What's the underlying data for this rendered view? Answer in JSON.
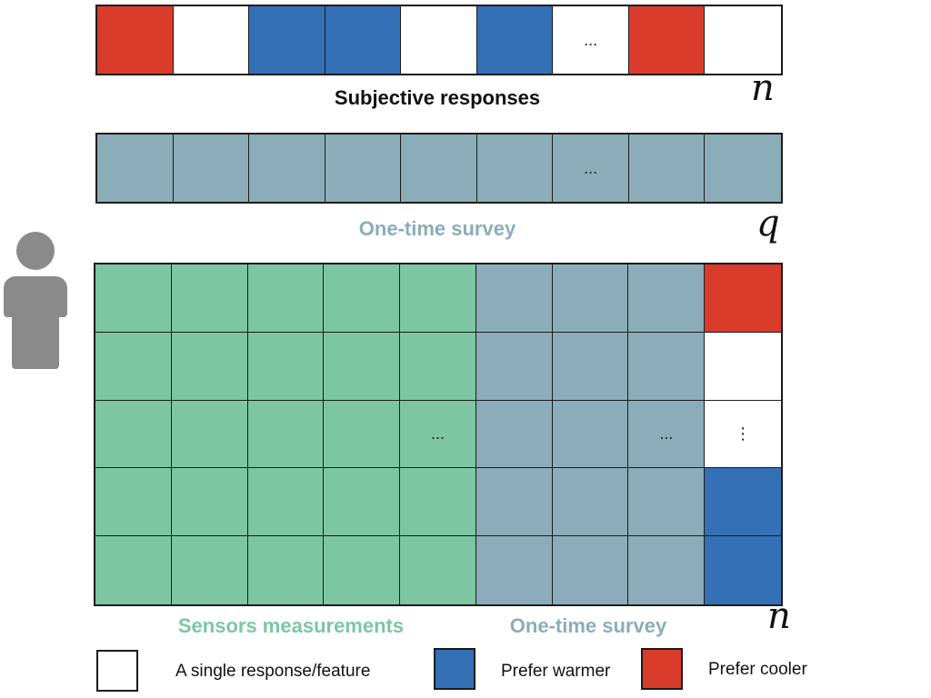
{
  "colors": {
    "white": "#ffffff",
    "warmer": "#3370b6",
    "cooler": "#d93c2b",
    "survey": "#8badb9",
    "sensor": "#7cc6a4",
    "person": "#8a8a8a"
  },
  "responses_strip": {
    "cells": [
      {
        "color": "cooler",
        "text": ""
      },
      {
        "color": "white",
        "text": ""
      },
      {
        "color": "warmer",
        "text": ""
      },
      {
        "color": "warmer",
        "text": ""
      },
      {
        "color": "white",
        "text": ""
      },
      {
        "color": "warmer",
        "text": ""
      },
      {
        "color": "white",
        "text": "..."
      },
      {
        "color": "cooler",
        "text": ""
      },
      {
        "color": "white",
        "text": ""
      }
    ],
    "label": "Subjective responses",
    "dimension": "n"
  },
  "survey_strip": {
    "cells": [
      {
        "color": "survey",
        "text": ""
      },
      {
        "color": "survey",
        "text": ""
      },
      {
        "color": "survey",
        "text": ""
      },
      {
        "color": "survey",
        "text": ""
      },
      {
        "color": "survey",
        "text": ""
      },
      {
        "color": "survey",
        "text": ""
      },
      {
        "color": "survey",
        "text": "..."
      },
      {
        "color": "survey",
        "text": ""
      },
      {
        "color": "survey",
        "text": ""
      }
    ],
    "label": "One-time survey",
    "dimension": "q"
  },
  "matrix": {
    "rows": [
      [
        {
          "color": "sensor",
          "text": ""
        },
        {
          "color": "sensor",
          "text": ""
        },
        {
          "color": "sensor",
          "text": ""
        },
        {
          "color": "sensor",
          "text": ""
        },
        {
          "color": "sensor",
          "text": ""
        },
        {
          "color": "survey",
          "text": ""
        },
        {
          "color": "survey",
          "text": ""
        },
        {
          "color": "survey",
          "text": ""
        },
        {
          "color": "cooler",
          "text": ""
        }
      ],
      [
        {
          "color": "sensor",
          "text": ""
        },
        {
          "color": "sensor",
          "text": ""
        },
        {
          "color": "sensor",
          "text": ""
        },
        {
          "color": "sensor",
          "text": ""
        },
        {
          "color": "sensor",
          "text": ""
        },
        {
          "color": "survey",
          "text": ""
        },
        {
          "color": "survey",
          "text": ""
        },
        {
          "color": "survey",
          "text": ""
        },
        {
          "color": "white",
          "text": ""
        }
      ],
      [
        {
          "color": "sensor",
          "text": ""
        },
        {
          "color": "sensor",
          "text": ""
        },
        {
          "color": "sensor",
          "text": ""
        },
        {
          "color": "sensor",
          "text": ""
        },
        {
          "color": "sensor",
          "text": "..."
        },
        {
          "color": "survey",
          "text": ""
        },
        {
          "color": "survey",
          "text": ""
        },
        {
          "color": "survey",
          "text": "..."
        },
        {
          "color": "white",
          "text": "⋮"
        }
      ],
      [
        {
          "color": "sensor",
          "text": ""
        },
        {
          "color": "sensor",
          "text": ""
        },
        {
          "color": "sensor",
          "text": ""
        },
        {
          "color": "sensor",
          "text": ""
        },
        {
          "color": "sensor",
          "text": ""
        },
        {
          "color": "survey",
          "text": ""
        },
        {
          "color": "survey",
          "text": ""
        },
        {
          "color": "survey",
          "text": ""
        },
        {
          "color": "warmer",
          "text": ""
        }
      ],
      [
        {
          "color": "sensor",
          "text": ""
        },
        {
          "color": "sensor",
          "text": ""
        },
        {
          "color": "sensor",
          "text": ""
        },
        {
          "color": "sensor",
          "text": ""
        },
        {
          "color": "sensor",
          "text": ""
        },
        {
          "color": "survey",
          "text": ""
        },
        {
          "color": "survey",
          "text": ""
        },
        {
          "color": "survey",
          "text": ""
        },
        {
          "color": "warmer",
          "text": ""
        }
      ]
    ],
    "label_sensors": "Sensors measurements",
    "label_survey": "One-time survey",
    "dimension": "n"
  },
  "person_icon": "person-icon",
  "legend": {
    "single": "A single response/feature",
    "warmer": "Prefer warmer",
    "cooler": "Prefer cooler"
  }
}
